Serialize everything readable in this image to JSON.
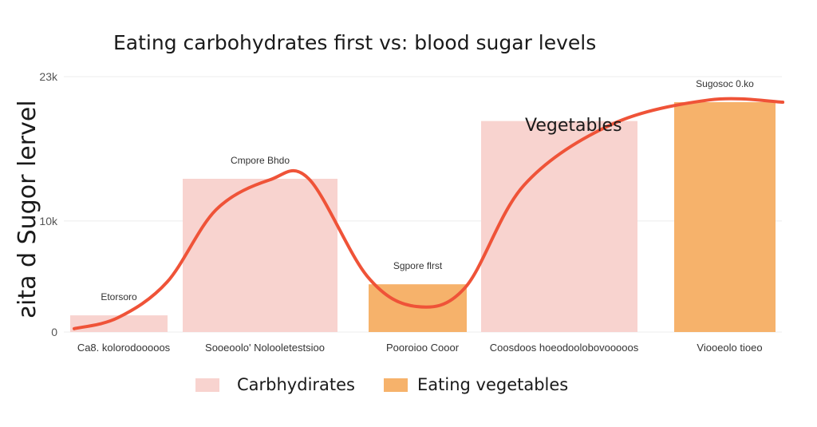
{
  "chart_data": {
    "type": "bar",
    "title": "Eating carbohydrates first vs: blood sugar levels",
    "xlabel": "",
    "ylabel": "ƨita d Sugor lervel",
    "ylim": [
      0,
      23000
    ],
    "y_ticks": [
      {
        "value": 0,
        "label": "0"
      },
      {
        "value": 10000,
        "label": "10k"
      },
      {
        "value": 23000,
        "label": "23k"
      }
    ],
    "grid": true,
    "legend_position": "bottom",
    "categories": [
      "Ca8. kolorodooooos",
      "Sooeoolo' Nolooletestsioo",
      "Pooroioo Cooor",
      "Coosdoos hoeodoolobovooooos",
      "Viooeolo tioeo"
    ],
    "series": [
      {
        "name": "Carbhydirates",
        "color": "#f8d3cf"
      },
      {
        "name": "Eating vegetables",
        "color": "#f6b26b"
      }
    ],
    "bars": [
      {
        "category": "Ca8. kolorodooooos",
        "series": "Carbhydirates",
        "value": 1500,
        "label": "Etorsoro"
      },
      {
        "category": "Sooeoolo' Nolooletestsioo",
        "series": "Carbhydirates",
        "value": 13800,
        "label": "Cmpore Bhdo"
      },
      {
        "category": "Pooroioo Cooor",
        "series": "Eating vegetables",
        "value": 4300,
        "label": "Sgpore flrst"
      },
      {
        "category": "Coosdoos hoeodoolobovooooos",
        "series": "Carbhydirates",
        "value": 19000,
        "label": ""
      },
      {
        "category": "Viooeolo tioeo",
        "series": "Eating vegetables",
        "value": 20700,
        "label": "Sugosoc 0.ko"
      }
    ],
    "curve": {
      "name": "blood sugar curve",
      "color": "#ef5338",
      "points": [
        {
          "x": 0,
          "y": 300
        },
        {
          "x": 0.45,
          "y": 1300
        },
        {
          "x": 0.95,
          "y": 4500
        },
        {
          "x": 1.45,
          "y": 11000
        },
        {
          "x": 2.0,
          "y": 13700
        },
        {
          "x": 2.4,
          "y": 13800
        },
        {
          "x": 3.0,
          "y": 5000
        },
        {
          "x": 3.5,
          "y": 2300
        },
        {
          "x": 4.0,
          "y": 4000
        },
        {
          "x": 4.6,
          "y": 13200
        },
        {
          "x": 5.5,
          "y": 18700
        },
        {
          "x": 6.5,
          "y": 20900
        },
        {
          "x": 7.25,
          "y": 20700
        }
      ]
    },
    "annotations": [
      {
        "text": "Vegetables"
      }
    ]
  }
}
